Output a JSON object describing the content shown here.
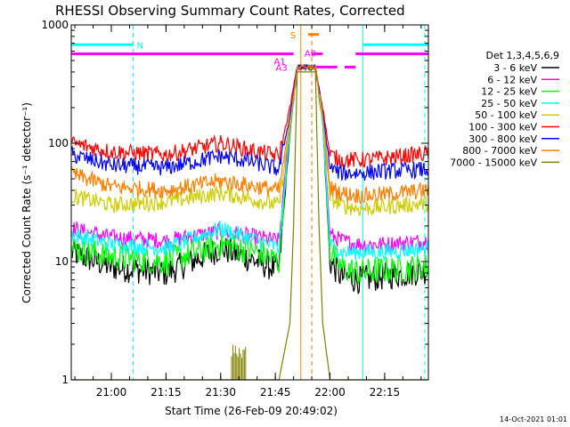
{
  "chart_data": {
    "type": "line",
    "title": "RHESSI Observing Summary Count Rates, Corrected",
    "xlabel": "Start Time (26-Feb-09 20:49:02)",
    "ylabel": "Corrected Count Rate (s⁻¹ detector⁻¹)",
    "y_scale": "log",
    "ylim": [
      1,
      1000
    ],
    "xlim": [
      "20:49",
      "22:27"
    ],
    "x_ticks": [
      "21:00",
      "21:15",
      "21:30",
      "21:45",
      "22:00",
      "22:15"
    ],
    "y_ticks": [
      "1",
      "10",
      "100",
      "1000"
    ],
    "legend_title": "Det 1,3,4,5,6,9",
    "legend_position": "right",
    "series": [
      {
        "name": "3 - 6 keV",
        "color": "#000000",
        "x": [
          "20:49",
          "21:00",
          "21:15",
          "21:30",
          "21:40",
          "21:46",
          "21:49",
          "21:51",
          "21:56",
          "21:58",
          "22:00",
          "22:03",
          "22:08",
          "22:15",
          "22:27"
        ],
        "y": [
          12,
          9,
          8,
          13,
          10,
          8.5,
          120,
          430,
          430,
          150,
          10,
          7.5,
          7,
          7.5,
          8.5
        ]
      },
      {
        "name": "6 - 12 keV",
        "color": "#ff00ff",
        "x": [
          "20:49",
          "21:00",
          "21:15",
          "21:30",
          "21:40",
          "21:46",
          "21:49",
          "21:51",
          "21:56",
          "21:58",
          "22:00",
          "22:03",
          "22:08",
          "22:15",
          "22:27"
        ],
        "y": [
          19,
          16,
          15,
          18,
          16,
          15,
          150,
          440,
          440,
          160,
          17,
          15,
          14,
          14,
          15
        ]
      },
      {
        "name": "12 - 25 keV",
        "color": "#00ff00",
        "x": [
          "20:49",
          "21:00",
          "21:15",
          "21:30",
          "21:40",
          "21:46",
          "21:49",
          "21:51",
          "21:56",
          "21:58",
          "22:00",
          "22:03",
          "22:08",
          "22:15",
          "22:27"
        ],
        "y": [
          13,
          11,
          10,
          14,
          12,
          10,
          130,
          440,
          440,
          150,
          12,
          9,
          8,
          8.5,
          9
        ]
      },
      {
        "name": "25 - 50 keV",
        "color": "#00ffff",
        "x": [
          "20:49",
          "21:00",
          "21:15",
          "21:30",
          "21:40",
          "21:46",
          "21:49",
          "21:51",
          "21:56",
          "21:58",
          "22:00",
          "22:03",
          "22:08",
          "22:15",
          "22:27"
        ],
        "y": [
          17,
          14,
          13,
          19,
          15,
          13,
          130,
          440,
          440,
          150,
          14,
          12,
          12,
          12,
          13
        ]
      },
      {
        "name": "50 - 100 keV",
        "color": "#cccc00",
        "x": [
          "20:49",
          "21:00",
          "21:15",
          "21:30",
          "21:40",
          "21:46",
          "21:49",
          "21:51",
          "21:56",
          "21:58",
          "22:00",
          "22:03",
          "22:08",
          "22:15",
          "22:27"
        ],
        "y": [
          36,
          30,
          32,
          38,
          33,
          30,
          140,
          440,
          440,
          160,
          35,
          30,
          28,
          29,
          31
        ]
      },
      {
        "name": "100 - 300 keV",
        "color": "#ff0000",
        "x": [
          "20:49",
          "21:00",
          "21:15",
          "21:30",
          "21:40",
          "21:46",
          "21:49",
          "21:51",
          "21:56",
          "21:58",
          "22:00",
          "22:03",
          "22:08",
          "22:15",
          "22:27"
        ],
        "y": [
          100,
          85,
          80,
          100,
          85,
          78,
          200,
          440,
          440,
          200,
          80,
          72,
          72,
          75,
          82
        ]
      },
      {
        "name": "300 - 800 keV",
        "color": "#0000ff",
        "x": [
          "20:49",
          "21:00",
          "21:15",
          "21:30",
          "21:40",
          "21:46",
          "21:49",
          "21:51",
          "21:56",
          "21:58",
          "22:00",
          "22:03",
          "22:08",
          "22:15",
          "22:27"
        ],
        "y": [
          80,
          65,
          62,
          78,
          68,
          60,
          170,
          440,
          440,
          180,
          62,
          56,
          56,
          58,
          60
        ]
      },
      {
        "name": "800 - 7000 keV",
        "color": "#ff7f00",
        "x": [
          "20:49",
          "21:00",
          "21:15",
          "21:30",
          "21:40",
          "21:46",
          "21:49",
          "21:51",
          "21:56",
          "21:58",
          "22:00",
          "22:03",
          "22:08",
          "22:15",
          "22:27"
        ],
        "y": [
          55,
          43,
          40,
          48,
          43,
          40,
          150,
          440,
          440,
          170,
          42,
          38,
          36,
          37,
          40
        ]
      },
      {
        "name": "7000 - 15000 keV",
        "color": "#808000",
        "x": [
          "20:49",
          "21:00",
          "21:15",
          "21:30",
          "21:40",
          "21:46",
          "21:49",
          "21:50",
          "21:51",
          "21:56",
          "21:57",
          "21:58",
          "22:00",
          "22:27"
        ],
        "y": [
          1,
          1,
          1,
          1,
          1,
          1,
          3,
          20,
          400,
          400,
          20,
          3,
          1,
          1
        ]
      }
    ],
    "spikes_7000_15000": {
      "from": "21:33",
      "to": "21:37",
      "value": 2
    },
    "flags": {
      "N_label": "N",
      "S_label": "S",
      "A0_label": "A0",
      "A1_label": "A1",
      "A3_label": "A3",
      "N_color": "#00ffff",
      "S_color": "#ff7f00",
      "A_color": "#ff00ff",
      "N_intervals": [
        [
          "20:49",
          "21:06"
        ],
        [
          "22:09",
          "22:27"
        ]
      ],
      "N_y": 680,
      "S_intervals": [
        [
          "21:54",
          "21:57"
        ]
      ],
      "S_y": 830,
      "A1_intervals": [
        [
          "20:49",
          "21:50"
        ]
      ],
      "A1_y": 570,
      "A0_intervals": [
        [
          "21:55",
          "21:58"
        ],
        [
          "22:07",
          "22:27"
        ]
      ],
      "A0_y": 570,
      "A3_intervals": [
        [
          "21:51",
          "22:02"
        ],
        [
          "22:04",
          "22:07"
        ]
      ],
      "A3_y": 440,
      "vertical_lines": [
        {
          "time": "20:49",
          "color": "#00ffff",
          "style": "solid"
        },
        {
          "time": "21:06",
          "color": "#00ffff",
          "style": "dashed"
        },
        {
          "time": "21:52",
          "color": "#ff7f00",
          "style": "solid"
        },
        {
          "time": "21:55",
          "color": "#ff7f00",
          "style": "dashed"
        },
        {
          "time": "22:09",
          "color": "#00ffff",
          "style": "solid"
        },
        {
          "time": "22:26",
          "color": "#00ffff",
          "style": "dashed"
        }
      ]
    },
    "timestamp": "14-Oct-2021 01:01"
  }
}
